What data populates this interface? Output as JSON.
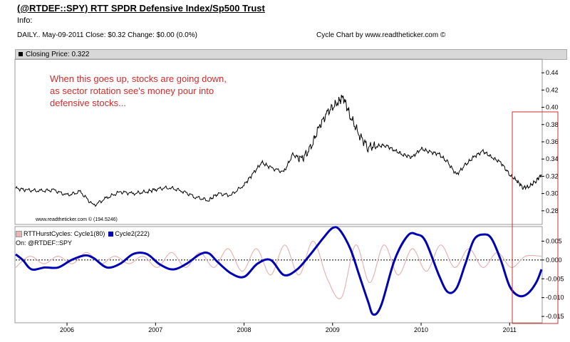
{
  "header": {
    "title": "(@RTDEF::SPY) RTT SPDR Defensive Index/Sp500 Trust",
    "info": "Info:",
    "stats": "DAILY.. May-09-2011  Close: $0.32  Change: $0.00  (0.0%)",
    "credit": "Cycle Chart by www.readtheticker.com ©"
  },
  "upper_panel": {
    "legend": "Closing Price: 0.322",
    "annotation": "When this goes up, stocks are going down, as sector rotation see's money pour into defensive stocks...",
    "watermark": "www.readtheticker.com © (194.5246)"
  },
  "lower_panel": {
    "legend_cycle1": "RTTHurstCycles: Cycle1(80)",
    "legend_cycle2": "Cycle2(222)",
    "on_label": "On: @RTDEF::SPY"
  },
  "colors": {
    "price_line": "#000000",
    "cycle1": "#e8b4b4",
    "cycle2": "#0000b4",
    "annotation": "#d22c2c",
    "highlight_box": "#d22c2c",
    "zero_line": "#000000"
  },
  "chart_data": [
    {
      "type": "line",
      "panel": "upper",
      "title": "Closing Price: 0.322",
      "y_ticks": [
        "0.44",
        "0.42",
        "0.40",
        "0.38",
        "0.36",
        "0.34",
        "0.32",
        "0.30",
        "0.28"
      ],
      "ylim": [
        0.265,
        0.455
      ],
      "x_range": [
        2005.42,
        2011.36
      ],
      "grid": false,
      "series": [
        {
          "x": [
            2005.42,
            2005.55,
            2005.7,
            2005.85,
            2006.0,
            2006.15,
            2006.3,
            2006.45,
            2006.6,
            2006.75,
            2006.9,
            2007.0,
            2007.15,
            2007.3,
            2007.45,
            2007.6,
            2007.7,
            2007.85,
            2008.0,
            2008.1,
            2008.2,
            2008.3,
            2008.45,
            2008.55,
            2008.65,
            2008.75,
            2008.85,
            2008.95,
            2009.05,
            2009.12,
            2009.2,
            2009.3,
            2009.4,
            2009.5,
            2009.6,
            2009.7,
            2009.8,
            2009.9,
            2010.0,
            2010.1,
            2010.2,
            2010.3,
            2010.4,
            2010.5,
            2010.6,
            2010.7,
            2010.8,
            2010.9,
            2011.0,
            2011.08,
            2011.15,
            2011.22,
            2011.3,
            2011.36
          ],
          "values": [
            0.306,
            0.304,
            0.303,
            0.304,
            0.298,
            0.302,
            0.286,
            0.295,
            0.302,
            0.3,
            0.302,
            0.305,
            0.307,
            0.303,
            0.296,
            0.292,
            0.3,
            0.298,
            0.31,
            0.323,
            0.336,
            0.33,
            0.325,
            0.345,
            0.34,
            0.352,
            0.378,
            0.395,
            0.405,
            0.412,
            0.39,
            0.368,
            0.354,
            0.355,
            0.356,
            0.35,
            0.345,
            0.342,
            0.352,
            0.348,
            0.346,
            0.336,
            0.322,
            0.333,
            0.343,
            0.349,
            0.342,
            0.336,
            0.322,
            0.315,
            0.307,
            0.308,
            0.315,
            0.322
          ]
        }
      ]
    },
    {
      "type": "line",
      "panel": "lower",
      "y_ticks": [
        "0.005",
        "0.000",
        "-0.005",
        "-0.010",
        "-0.015"
      ],
      "ylim": [
        -0.0165,
        0.0085
      ],
      "x_tick_labels": [
        "2006",
        "2007",
        "2008",
        "2009",
        "2010",
        "2011"
      ],
      "x_ticks": [
        2006,
        2007,
        2008,
        2009,
        2010,
        2011
      ],
      "x_range": [
        2005.42,
        2011.36
      ],
      "zero_line": true,
      "series": [
        {
          "name": "Cycle1(80)",
          "x": [
            2005.42,
            2005.58,
            2005.74,
            2005.9,
            2006.06,
            2006.22,
            2006.38,
            2006.54,
            2006.7,
            2006.86,
            2007.02,
            2007.18,
            2007.34,
            2007.5,
            2007.66,
            2007.82,
            2007.98,
            2008.14,
            2008.3,
            2008.46,
            2008.62,
            2008.78,
            2008.94,
            2009.1,
            2009.26,
            2009.42,
            2009.58,
            2009.74,
            2009.9,
            2010.06,
            2010.22,
            2010.38,
            2010.54,
            2010.7,
            2010.86,
            2011.02,
            2011.18,
            2011.36
          ],
          "values": [
            -0.002,
            0.001,
            -0.001,
            0.001,
            -0.001,
            0.002,
            -0.001,
            0.001,
            -0.001,
            0.001,
            -0.002,
            0.002,
            -0.002,
            0.002,
            -0.002,
            0.003,
            -0.003,
            0.003,
            -0.004,
            0.004,
            -0.004,
            0.005,
            -0.005,
            -0.01,
            0.004,
            -0.006,
            0.004,
            -0.004,
            0.003,
            -0.003,
            0.004,
            -0.002,
            0.003,
            -0.002,
            0.002,
            -0.002,
            0.001,
            0.001
          ]
        },
        {
          "name": "Cycle2(222)",
          "x": [
            2005.42,
            2005.5,
            2005.6,
            2005.75,
            2005.9,
            2006.05,
            2006.2,
            2006.3,
            2006.45,
            2006.6,
            2006.75,
            2006.9,
            2007.05,
            2007.2,
            2007.35,
            2007.5,
            2007.6,
            2007.7,
            2007.85,
            2008.0,
            2008.15,
            2008.3,
            2008.45,
            2008.6,
            2008.75,
            2008.9,
            2009.0,
            2009.08,
            2009.2,
            2009.3,
            2009.4,
            2009.46,
            2009.55,
            2009.7,
            2009.85,
            2009.95,
            2010.05,
            2010.2,
            2010.3,
            2010.4,
            2010.5,
            2010.6,
            2010.72,
            2010.8,
            2010.9,
            2011.0,
            2011.1,
            2011.2,
            2011.3,
            2011.36
          ],
          "values": [
            0.0015,
            0.0,
            -0.0025,
            -0.002,
            -0.002,
            0.0,
            0.0012,
            0.0005,
            -0.002,
            -0.001,
            0.0016,
            0.0016,
            -0.0012,
            -0.0025,
            -0.001,
            0.0015,
            0.0018,
            -0.0005,
            -0.0035,
            -0.0045,
            -0.001,
            0.0,
            -0.004,
            -0.0025,
            0.0015,
            0.006,
            0.0085,
            0.008,
            0.003,
            -0.004,
            -0.011,
            -0.0145,
            -0.012,
            0.0,
            0.0065,
            0.0068,
            0.005,
            -0.004,
            -0.0085,
            -0.0075,
            -0.001,
            0.0055,
            0.0068,
            0.0055,
            0.0,
            -0.007,
            -0.0095,
            -0.009,
            -0.006,
            -0.0025
          ]
        }
      ]
    }
  ]
}
